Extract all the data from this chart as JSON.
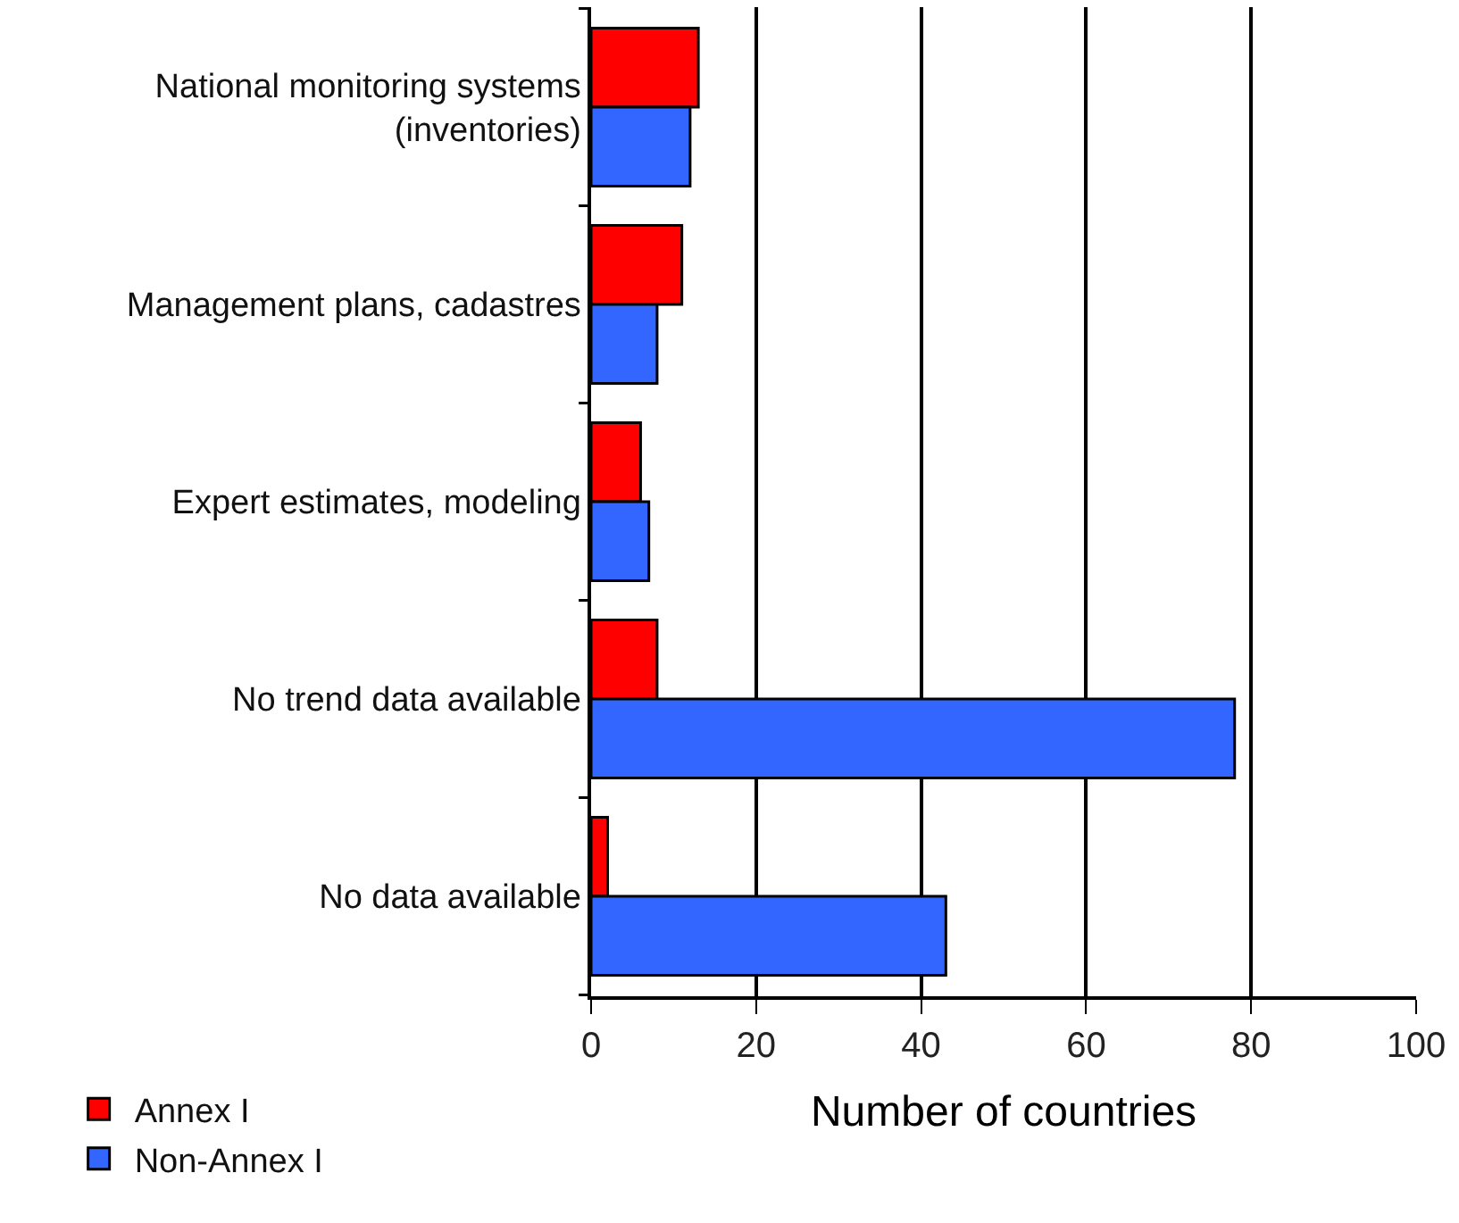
{
  "chart_data": {
    "type": "bar",
    "orientation": "horizontal",
    "xlabel": "Number of countries",
    "categories": [
      "National monitoring systems\n(inventories)",
      "Management plans, cadastres",
      "Expert estimates, modeling",
      "No trend data available",
      "No data available"
    ],
    "series": [
      {
        "name": "Annex I",
        "color": "#ff0000",
        "values": [
          13,
          11,
          6,
          8,
          2
        ]
      },
      {
        "name": "Non-Annex I",
        "color": "#3366ff",
        "values": [
          12,
          8,
          7,
          78,
          43
        ]
      }
    ],
    "xlim": [
      0,
      100
    ],
    "xticks": [
      0,
      20,
      40,
      60,
      80,
      100
    ],
    "grid": "x",
    "legend": "bottom left"
  }
}
